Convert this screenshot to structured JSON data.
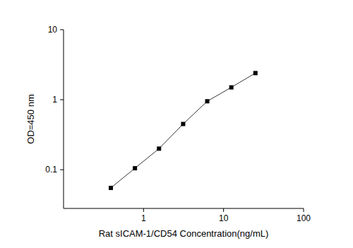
{
  "chart_data": {
    "type": "line",
    "x_label": "Rat sICAM-1/CD54 Concentration(ng/mL)",
    "y_label": "OD=450 nm",
    "x": [
      0.39,
      0.78,
      1.56,
      3.125,
      6.25,
      12.5,
      25
    ],
    "values": [
      0.055,
      0.105,
      0.2,
      0.45,
      0.95,
      1.5,
      2.4
    ],
    "color": "#000000",
    "marker": "square",
    "line_style": "solid",
    "log": true,
    "grid": false,
    "xlim": [
      0.1,
      100
    ],
    "ylim": [
      0.028,
      10
    ],
    "xticks": [
      1,
      10,
      100
    ],
    "yticks": [
      0.1,
      1,
      10
    ]
  }
}
